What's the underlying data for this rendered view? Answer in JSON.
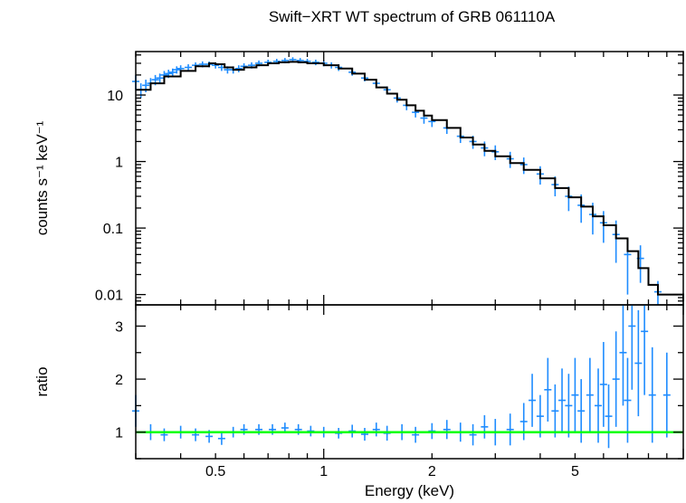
{
  "colors": {
    "data": "#1e8cff",
    "model": "#000000",
    "reference_line": "#00ff00",
    "frame": "#000000",
    "background": "#ffffff"
  },
  "chart_data": [
    {
      "panel": "spectrum",
      "type": "scatter",
      "title": "Swift−XRT WT spectrum of GRB 061110A",
      "ylabel": "counts s⁻¹ keV⁻¹",
      "xlabel": "",
      "xscale": "log",
      "yscale": "log",
      "xlim": [
        0.3,
        10
      ],
      "ylim": [
        0.007,
        45
      ],
      "grid": false,
      "xticks": [
        {
          "value": 0.5,
          "label": ""
        },
        {
          "value": 1,
          "label": ""
        },
        {
          "value": 2,
          "label": ""
        },
        {
          "value": 5,
          "label": ""
        }
      ],
      "yticks": [
        {
          "value": 10,
          "label": "10"
        },
        {
          "value": 1,
          "label": "1"
        },
        {
          "value": 0.1,
          "label": "0.1"
        },
        {
          "value": 0.01,
          "label": "0.01"
        }
      ],
      "series": [
        {
          "kind": "data-with-errors",
          "points": [
            [
              0.3,
              16,
              4
            ],
            [
              0.31,
              12,
              3
            ],
            [
              0.32,
              14,
              3
            ],
            [
              0.33,
              15,
              3
            ],
            [
              0.34,
              17,
              3
            ],
            [
              0.35,
              18,
              3
            ],
            [
              0.36,
              20,
              3
            ],
            [
              0.37,
              21,
              3
            ],
            [
              0.38,
              22,
              3
            ],
            [
              0.39,
              24,
              3
            ],
            [
              0.4,
              25,
              3
            ],
            [
              0.42,
              26,
              3
            ],
            [
              0.44,
              28,
              3
            ],
            [
              0.46,
              29,
              3
            ],
            [
              0.48,
              29,
              3
            ],
            [
              0.5,
              28,
              3
            ],
            [
              0.52,
              26,
              3
            ],
            [
              0.54,
              24,
              3
            ],
            [
              0.56,
              24,
              3
            ],
            [
              0.58,
              25,
              3
            ],
            [
              0.6,
              27,
              3
            ],
            [
              0.63,
              28,
              3
            ],
            [
              0.66,
              30,
              3
            ],
            [
              0.7,
              31,
              3
            ],
            [
              0.74,
              32,
              3
            ],
            [
              0.78,
              33,
              3
            ],
            [
              0.82,
              34,
              3
            ],
            [
              0.86,
              33,
              3
            ],
            [
              0.9,
              32,
              3
            ],
            [
              0.95,
              31,
              3
            ],
            [
              1.0,
              30,
              3
            ],
            [
              1.05,
              28,
              3
            ],
            [
              1.1,
              26,
              3
            ],
            [
              1.2,
              22,
              2.5
            ],
            [
              1.3,
              18,
              2
            ],
            [
              1.4,
              15,
              2
            ],
            [
              1.5,
              12,
              1.5
            ],
            [
              1.6,
              9,
              1.3
            ],
            [
              1.7,
              7,
              1.1
            ],
            [
              1.8,
              5.5,
              0.9
            ],
            [
              1.9,
              4.5,
              0.8
            ],
            [
              2.0,
              4.0,
              0.7
            ],
            [
              2.2,
              3.2,
              0.6
            ],
            [
              2.4,
              2.4,
              0.5
            ],
            [
              2.6,
              2.0,
              0.45
            ],
            [
              2.8,
              1.6,
              0.4
            ],
            [
              3.0,
              1.4,
              0.35
            ],
            [
              3.3,
              1.1,
              0.3
            ],
            [
              3.6,
              0.9,
              0.25
            ],
            [
              4.0,
              0.65,
              0.2
            ],
            [
              4.4,
              0.45,
              0.15
            ],
            [
              4.8,
              0.3,
              0.12
            ],
            [
              5.2,
              0.22,
              0.1
            ],
            [
              5.6,
              0.16,
              0.08
            ],
            [
              6.0,
              0.12,
              0.06
            ],
            [
              6.5,
              0.08,
              0.05
            ],
            [
              7.0,
              0.04,
              0.03
            ],
            [
              7.6,
              0.035,
              0.02
            ],
            [
              8.5,
              0.011,
              0.005
            ]
          ]
        },
        {
          "kind": "model-step",
          "points": [
            [
              0.3,
              12
            ],
            [
              0.33,
              15
            ],
            [
              0.36,
              19
            ],
            [
              0.4,
              23
            ],
            [
              0.44,
              27
            ],
            [
              0.48,
              30
            ],
            [
              0.5,
              29
            ],
            [
              0.53,
              26
            ],
            [
              0.56,
              24
            ],
            [
              0.6,
              26
            ],
            [
              0.65,
              28
            ],
            [
              0.7,
              30
            ],
            [
              0.75,
              31
            ],
            [
              0.8,
              31.5
            ],
            [
              0.85,
              31
            ],
            [
              0.9,
              30
            ],
            [
              1.0,
              28
            ],
            [
              1.1,
              25
            ],
            [
              1.2,
              21
            ],
            [
              1.3,
              17
            ],
            [
              1.4,
              13
            ],
            [
              1.5,
              10.5
            ],
            [
              1.6,
              8.5
            ],
            [
              1.7,
              7
            ],
            [
              1.8,
              5.8
            ],
            [
              1.9,
              4.9
            ],
            [
              2.0,
              4.2
            ],
            [
              2.2,
              3.2
            ],
            [
              2.4,
              2.3
            ],
            [
              2.6,
              1.8
            ],
            [
              2.8,
              1.45
            ],
            [
              3.0,
              1.2
            ],
            [
              3.3,
              0.95
            ],
            [
              3.6,
              0.75
            ],
            [
              4.0,
              0.56
            ],
            [
              4.4,
              0.4
            ],
            [
              4.8,
              0.29
            ],
            [
              5.2,
              0.21
            ],
            [
              5.6,
              0.15
            ],
            [
              6.0,
              0.11
            ],
            [
              6.5,
              0.07
            ],
            [
              7.0,
              0.045
            ],
            [
              7.5,
              0.025
            ],
            [
              8.0,
              0.014
            ],
            [
              8.5,
              0.01
            ],
            [
              10.0,
              0.008
            ]
          ]
        }
      ]
    },
    {
      "panel": "ratio",
      "type": "scatter",
      "ylabel": "ratio",
      "xlabel": "Energy (keV)",
      "xscale": "log",
      "yscale": "linear",
      "xlim": [
        0.3,
        10
      ],
      "ylim": [
        0.5,
        3.4
      ],
      "grid": false,
      "xticks": [
        {
          "value": 0.5,
          "label": "0.5"
        },
        {
          "value": 1,
          "label": "1"
        },
        {
          "value": 2,
          "label": "2"
        },
        {
          "value": 5,
          "label": "5"
        }
      ],
      "yticks": [
        {
          "value": 1,
          "label": "1"
        },
        {
          "value": 2,
          "label": "2"
        },
        {
          "value": 3,
          "label": "3"
        }
      ],
      "reference_value": 1,
      "series": [
        {
          "kind": "data-with-errors",
          "points": [
            [
              0.3,
              1.4,
              0.3
            ],
            [
              0.33,
              1.0,
              0.15
            ],
            [
              0.36,
              0.95,
              0.12
            ],
            [
              0.4,
              1.0,
              0.12
            ],
            [
              0.44,
              0.95,
              0.12
            ],
            [
              0.48,
              0.92,
              0.12
            ],
            [
              0.52,
              0.88,
              0.12
            ],
            [
              0.56,
              1.0,
              0.1
            ],
            [
              0.6,
              1.05,
              0.1
            ],
            [
              0.66,
              1.05,
              0.1
            ],
            [
              0.72,
              1.05,
              0.1
            ],
            [
              0.78,
              1.08,
              0.1
            ],
            [
              0.85,
              1.05,
              0.1
            ],
            [
              0.92,
              1.02,
              0.1
            ],
            [
              1.0,
              1.0,
              0.1
            ],
            [
              1.1,
              0.98,
              0.1
            ],
            [
              1.2,
              1.02,
              0.12
            ],
            [
              1.3,
              0.96,
              0.12
            ],
            [
              1.4,
              1.05,
              0.13
            ],
            [
              1.5,
              0.98,
              0.14
            ],
            [
              1.65,
              1.0,
              0.15
            ],
            [
              1.8,
              0.95,
              0.15
            ],
            [
              2.0,
              1.02,
              0.15
            ],
            [
              2.2,
              1.05,
              0.18
            ],
            [
              2.4,
              1.0,
              0.18
            ],
            [
              2.6,
              0.95,
              0.2
            ],
            [
              2.8,
              1.1,
              0.22
            ],
            [
              3.0,
              1.0,
              0.25
            ],
            [
              3.3,
              1.05,
              0.3
            ],
            [
              3.6,
              1.2,
              0.35
            ],
            [
              3.8,
              1.6,
              0.5
            ],
            [
              4.0,
              1.3,
              0.4
            ],
            [
              4.2,
              1.8,
              0.6
            ],
            [
              4.4,
              1.4,
              0.5
            ],
            [
              4.6,
              1.6,
              0.6
            ],
            [
              4.8,
              1.5,
              0.6
            ],
            [
              5.0,
              1.7,
              0.7
            ],
            [
              5.2,
              1.4,
              0.6
            ],
            [
              5.5,
              1.7,
              0.7
            ],
            [
              5.8,
              1.5,
              0.7
            ],
            [
              6.0,
              1.9,
              0.8
            ],
            [
              6.2,
              1.3,
              0.6
            ],
            [
              6.5,
              2.0,
              0.9
            ],
            [
              6.8,
              2.5,
              1.0
            ],
            [
              7.0,
              1.6,
              0.8
            ],
            [
              7.2,
              3.0,
              1.2
            ],
            [
              7.5,
              2.3,
              1.0
            ],
            [
              7.8,
              2.9,
              1.2
            ],
            [
              8.2,
              1.7,
              0.9
            ],
            [
              9.0,
              1.7,
              0.8
            ]
          ]
        }
      ]
    }
  ]
}
